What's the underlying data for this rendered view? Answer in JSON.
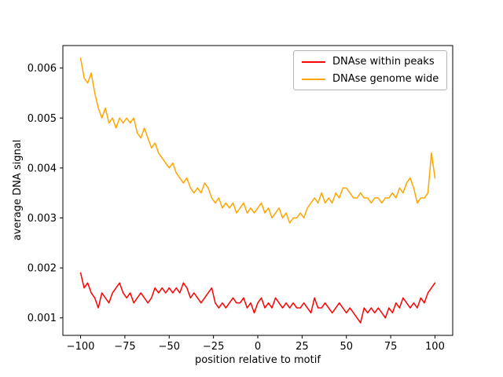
{
  "figure": {
    "background": "#ffffff",
    "xlabel": "position relative to motif",
    "ylabel": "average DNA signal"
  },
  "legend": {
    "position": "upper right",
    "items": [
      {
        "label": "DNAse within peaks",
        "color": "#ff0000"
      },
      {
        "label": "DNAse genome wide",
        "color": "#ffa500"
      }
    ]
  },
  "chart_data": {
    "type": "line",
    "title": "",
    "xlabel": "position relative to motif",
    "ylabel": "average DNA signal",
    "xlim": [
      -110,
      110
    ],
    "ylim": [
      0.00065,
      0.00645
    ],
    "grid": false,
    "legend_position": "upper right",
    "xticks": [
      -100,
      -75,
      -50,
      -25,
      0,
      25,
      50,
      75,
      100
    ],
    "xtick_labels": [
      "−100",
      "−75",
      "−50",
      "−25",
      "0",
      "25",
      "50",
      "75",
      "100"
    ],
    "yticks": [
      0.001,
      0.002,
      0.003,
      0.004,
      0.005,
      0.006
    ],
    "ytick_labels": [
      "0.001",
      "0.002",
      "0.003",
      "0.004",
      "0.005",
      "0.006"
    ],
    "x": [
      -100,
      -98,
      -96,
      -94,
      -92,
      -90,
      -88,
      -86,
      -84,
      -82,
      -80,
      -78,
      -76,
      -74,
      -72,
      -70,
      -68,
      -66,
      -64,
      -62,
      -60,
      -58,
      -56,
      -54,
      -52,
      -50,
      -48,
      -46,
      -44,
      -42,
      -40,
      -38,
      -36,
      -34,
      -32,
      -30,
      -28,
      -26,
      -24,
      -22,
      -20,
      -18,
      -16,
      -14,
      -12,
      -10,
      -8,
      -6,
      -4,
      -2,
      0,
      2,
      4,
      6,
      8,
      10,
      12,
      14,
      16,
      18,
      20,
      22,
      24,
      26,
      28,
      30,
      32,
      34,
      36,
      38,
      40,
      42,
      44,
      46,
      48,
      50,
      52,
      54,
      56,
      58,
      60,
      62,
      64,
      66,
      68,
      70,
      72,
      74,
      76,
      78,
      80,
      82,
      84,
      86,
      88,
      90,
      92,
      94,
      96,
      98,
      100
    ],
    "series": [
      {
        "name": "DNAse within peaks",
        "color": "#ff0000",
        "values": [
          0.0019,
          0.0016,
          0.0017,
          0.0015,
          0.0014,
          0.0012,
          0.0015,
          0.0014,
          0.0013,
          0.0015,
          0.0016,
          0.0017,
          0.0015,
          0.0014,
          0.0015,
          0.0013,
          0.0014,
          0.0015,
          0.0014,
          0.0013,
          0.0014,
          0.0016,
          0.0015,
          0.0016,
          0.0015,
          0.0016,
          0.0015,
          0.0016,
          0.0015,
          0.0017,
          0.0016,
          0.0014,
          0.0015,
          0.0014,
          0.0013,
          0.0014,
          0.0015,
          0.0016,
          0.0013,
          0.0012,
          0.0013,
          0.0012,
          0.0013,
          0.0014,
          0.0013,
          0.0013,
          0.0014,
          0.0012,
          0.0013,
          0.0011,
          0.0013,
          0.0014,
          0.0012,
          0.0013,
          0.0012,
          0.0014,
          0.0013,
          0.0012,
          0.0013,
          0.0012,
          0.0013,
          0.0012,
          0.0012,
          0.0013,
          0.0012,
          0.0011,
          0.0014,
          0.0012,
          0.0012,
          0.0013,
          0.0012,
          0.0011,
          0.0012,
          0.0013,
          0.0012,
          0.0011,
          0.0012,
          0.0011,
          0.001,
          0.0009,
          0.0012,
          0.0011,
          0.0012,
          0.0011,
          0.0012,
          0.0011,
          0.001,
          0.0012,
          0.0011,
          0.0013,
          0.0012,
          0.0014,
          0.0013,
          0.0012,
          0.0013,
          0.0012,
          0.0014,
          0.0013,
          0.0015,
          0.0016,
          0.0017
        ]
      },
      {
        "name": "DNAse genome wide",
        "color": "#ffa500",
        "values": [
          0.0062,
          0.0058,
          0.0057,
          0.0059,
          0.0055,
          0.0052,
          0.005,
          0.0052,
          0.0049,
          0.005,
          0.0048,
          0.005,
          0.0049,
          0.005,
          0.0049,
          0.005,
          0.0047,
          0.0046,
          0.0048,
          0.0046,
          0.0044,
          0.0045,
          0.0043,
          0.0042,
          0.0041,
          0.004,
          0.0041,
          0.0039,
          0.0038,
          0.0037,
          0.0038,
          0.0036,
          0.0035,
          0.0036,
          0.0035,
          0.0037,
          0.0036,
          0.0034,
          0.0033,
          0.0034,
          0.0032,
          0.0033,
          0.0032,
          0.0033,
          0.0031,
          0.0032,
          0.0033,
          0.0031,
          0.0032,
          0.0031,
          0.0032,
          0.0033,
          0.0031,
          0.0032,
          0.003,
          0.0031,
          0.0032,
          0.003,
          0.0031,
          0.0029,
          0.003,
          0.003,
          0.0031,
          0.003,
          0.0032,
          0.0033,
          0.0034,
          0.0033,
          0.0035,
          0.0033,
          0.0034,
          0.0033,
          0.0035,
          0.0034,
          0.0036,
          0.0036,
          0.0035,
          0.0034,
          0.0034,
          0.0035,
          0.0034,
          0.0034,
          0.0033,
          0.0034,
          0.0034,
          0.0033,
          0.0034,
          0.0034,
          0.0035,
          0.0034,
          0.0036,
          0.0035,
          0.0037,
          0.0038,
          0.0036,
          0.0033,
          0.0034,
          0.0034,
          0.0035,
          0.0043,
          0.0038
        ]
      }
    ]
  }
}
